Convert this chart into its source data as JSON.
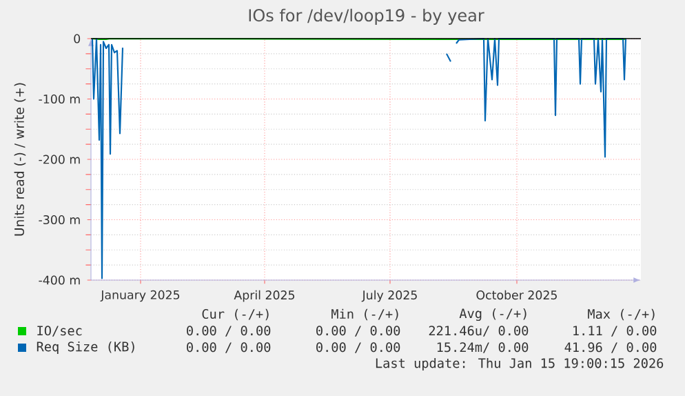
{
  "chart_data": {
    "type": "line",
    "title": "IOs for /dev/loop19 - by year",
    "ylabel": "Units read (-) / write (+)",
    "xlim": [
      "2024-11-26",
      "2025-12-30"
    ],
    "xticks": [
      {
        "value": "2025-01-01",
        "label": "January 2025"
      },
      {
        "value": "2025-04-01",
        "label": "April 2025"
      },
      {
        "value": "2025-07-01",
        "label": "July 2025"
      },
      {
        "value": "2025-10-01",
        "label": "October 2025"
      }
    ],
    "ylim": [
      -400,
      0
    ],
    "yticks": [
      {
        "value": -400,
        "label": "-400 m"
      },
      {
        "value": -300,
        "label": "-300 m"
      },
      {
        "value": -200,
        "label": "-200 m"
      },
      {
        "value": -100,
        "label": "-100 m"
      },
      {
        "value": 0,
        "label": "0"
      }
    ],
    "grid": true,
    "legend": "bottom",
    "marker": "none",
    "line_style": "solid",
    "ref_lines": [
      {
        "axis": "y",
        "value": 0,
        "color": "#000000"
      }
    ],
    "series": [
      {
        "name": "IO/sec",
        "color": "#00cc00",
        "x": [
          "2024-11-27",
          "2024-12-02",
          "2024-12-07",
          "2024-12-10",
          "2025-08-14",
          "2025-09-08",
          "2025-11-27",
          "2025-12-04",
          "2025-12-18",
          "2025-12-19"
        ],
        "values": [
          0,
          -1,
          -1,
          0,
          -1,
          -1,
          -1,
          -1,
          -1,
          0
        ]
      },
      {
        "name": "Req Size (KB)",
        "color": "#0066b3",
        "x": [
          "2024-11-27",
          "2024-11-28",
          "2024-11-30",
          "2024-12-02",
          "2024-12-03",
          "2024-12-04",
          "2024-12-05",
          "2024-12-07",
          "2024-12-09",
          "2024-12-10",
          "2024-12-11",
          "2024-12-13",
          "2024-12-15",
          "2024-12-17",
          "2024-12-19",
          "2024-12-20",
          "2025-08-11",
          "2025-08-14",
          "2025-08-16",
          "2025-08-18",
          "2025-08-20",
          "2025-09-07",
          "2025-09-08",
          "2025-09-10",
          "2025-09-13",
          "2025-09-15",
          "2025-09-17",
          "2025-09-18",
          "2025-10-28",
          "2025-10-29",
          "2025-10-30",
          "2025-11-15",
          "2025-11-16",
          "2025-11-17",
          "2025-11-26",
          "2025-11-27",
          "2025-11-29",
          "2025-12-01",
          "2025-12-02",
          "2025-12-04",
          "2025-12-05",
          "2025-12-17",
          "2025-12-18",
          "2025-12-19"
        ],
        "values": [
          0,
          -100,
          0,
          -168,
          -10,
          -397,
          -5,
          -16,
          -10,
          -191,
          -10,
          -23,
          -20,
          -157,
          -15,
          null,
          -25,
          -38,
          null,
          -8,
          -2,
          0,
          -136,
          0,
          -68,
          0,
          -77,
          0,
          0,
          -127,
          0,
          0,
          -75,
          0,
          0,
          -75,
          0,
          -88,
          0,
          -196,
          0,
          0,
          -68,
          0
        ]
      }
    ],
    "annotations": [
      "Cur (-/+)",
      "Min (-/+)",
      "Avg (-/+)",
      "Max (-/+)",
      "0.00 / 0.00",
      "0.00 / 0.00",
      "221.46u/ 0.00",
      "1.11 / 0.00",
      "0.00 / 0.00",
      "0.00 / 0.00",
      "15.24m/ 0.00",
      "41.96 / 0.00",
      "Last update: Thu Jan 15 19:00:15 2026"
    ]
  }
}
